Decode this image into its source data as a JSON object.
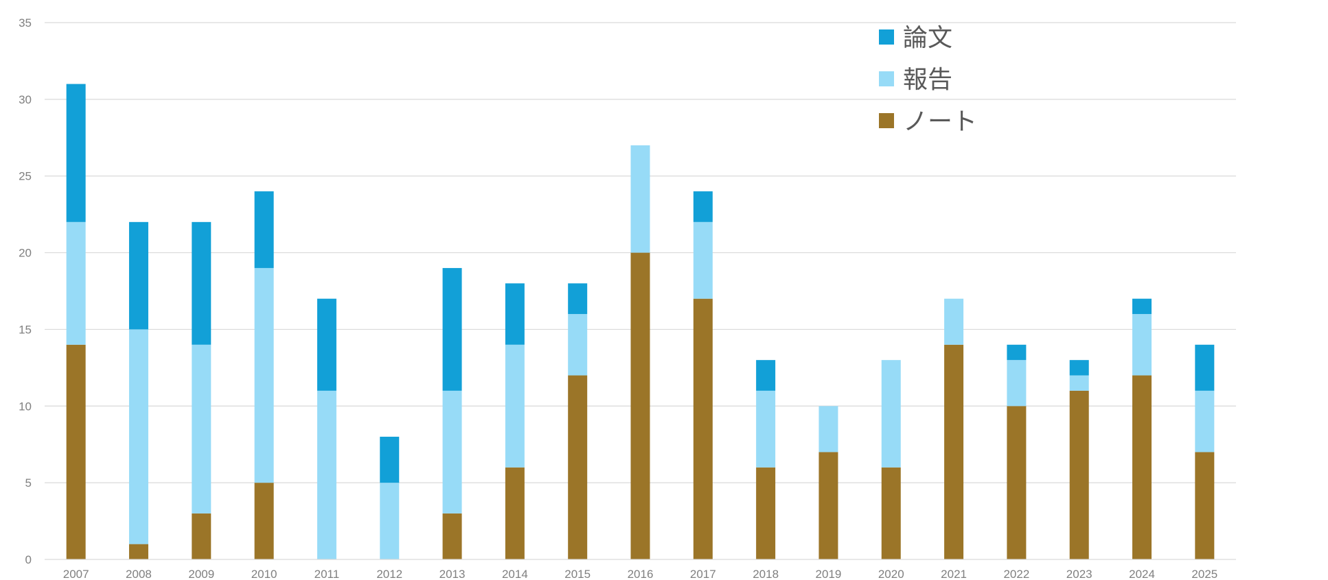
{
  "chart_data": {
    "type": "bar",
    "stacked": true,
    "categories": [
      "2007",
      "2008",
      "2009",
      "2010",
      "2011",
      "2012",
      "2013",
      "2014",
      "2015",
      "2016",
      "2017",
      "2018",
      "2019",
      "2020",
      "2021",
      "2022",
      "2023",
      "2024",
      "2025"
    ],
    "series": [
      {
        "name": "ノート",
        "color": "#9B7528",
        "values": [
          14,
          1,
          3,
          5,
          0,
          0,
          3,
          6,
          12,
          20,
          17,
          6,
          7,
          6,
          14,
          10,
          11,
          12,
          7
        ]
      },
      {
        "name": "報告",
        "color": "#97DBF7",
        "values": [
          8,
          14,
          11,
          14,
          11,
          5,
          8,
          8,
          4,
          7,
          5,
          5,
          3,
          7,
          3,
          3,
          1,
          4,
          4
        ]
      },
      {
        "name": "論文",
        "color": "#12A0D7",
        "values": [
          9,
          7,
          8,
          5,
          6,
          3,
          8,
          4,
          2,
          0,
          2,
          2,
          0,
          0,
          0,
          1,
          1,
          1,
          3
        ]
      }
    ],
    "legend_order": [
      "論文",
      "報告",
      "ノート"
    ],
    "y_ticks": [
      "0",
      "5",
      "10",
      "15",
      "20",
      "25",
      "30",
      "35"
    ],
    "ylim": [
      0,
      35
    ],
    "grid": true,
    "legend_position": "top-right"
  }
}
